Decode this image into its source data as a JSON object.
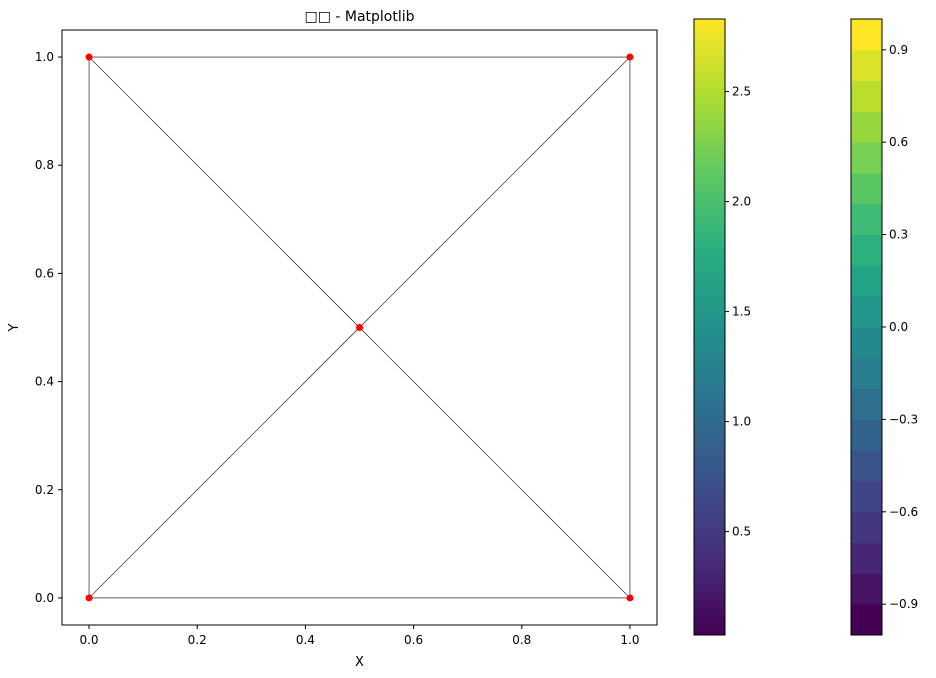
{
  "chart_data": {
    "type": "scatter",
    "title": "□□ - Matplotlib",
    "xlabel": "X",
    "ylabel": "Y",
    "xlim": [
      -0.05,
      1.05
    ],
    "ylim": [
      -0.05,
      1.05
    ],
    "xticks": [
      0.0,
      0.2,
      0.4,
      0.6,
      0.8,
      1.0
    ],
    "yticks": [
      0.0,
      0.2,
      0.4,
      0.6,
      0.8,
      1.0
    ],
    "grid": false,
    "nodes": [
      {
        "x": 0.0,
        "y": 0.0
      },
      {
        "x": 1.0,
        "y": 0.0
      },
      {
        "x": 1.0,
        "y": 1.0
      },
      {
        "x": 0.0,
        "y": 1.0
      },
      {
        "x": 0.5,
        "y": 0.5
      }
    ],
    "edges": [
      [
        0,
        1
      ],
      [
        1,
        2
      ],
      [
        2,
        3
      ],
      [
        3,
        0
      ],
      [
        0,
        4
      ],
      [
        1,
        4
      ],
      [
        2,
        4
      ],
      [
        3,
        4
      ]
    ],
    "node_color": "#ff0000",
    "edge_color": "#000000",
    "colorbars": [
      {
        "colormap": "viridis",
        "continuous": true,
        "min": 0.03,
        "max": 2.83,
        "ticks": [
          0.5,
          1.0,
          1.5,
          2.0,
          2.5
        ],
        "tick_labels": [
          "0.5",
          "1.0",
          "1.5",
          "2.0",
          "2.5"
        ]
      },
      {
        "colormap": "viridis",
        "continuous": false,
        "levels": 20,
        "min": -1.0,
        "max": 1.0,
        "ticks": [
          -0.9,
          -0.6,
          -0.3,
          0.0,
          0.3,
          0.6,
          0.9
        ],
        "tick_labels": [
          "−0.9",
          "−0.6",
          "−0.3",
          "0.0",
          "0.3",
          "0.6",
          "0.9"
        ]
      }
    ]
  }
}
